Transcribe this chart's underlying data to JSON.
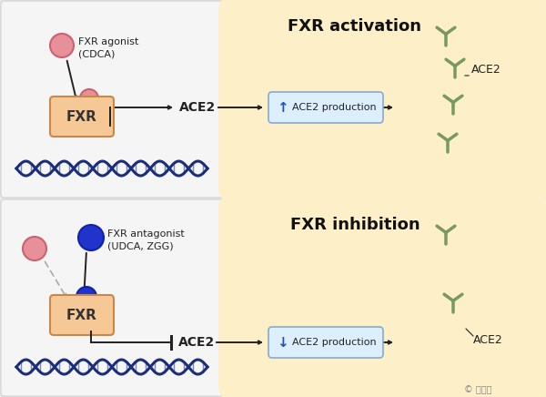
{
  "bg_color": "#e8e8e8",
  "panel_bg": "#f5f5f5",
  "cell_color_light": "#fdf0c8",
  "cell_color_dark": "#f5d878",
  "dna_color": "#1a2e7a",
  "fxr_box_color": "#f5c896",
  "fxr_box_edge": "#c8884a",
  "pink_ball_color": "#e8909a",
  "pink_ball_edge": "#cc6070",
  "blue_ball_color": "#2233cc",
  "blue_ball_edge": "#1122aa",
  "arrow_color": "#222222",
  "gray_arrow_color": "#aaaaaa",
  "box_fill": "#ddeeff",
  "box_edge": "#88aacc",
  "ace2_receptor_color": "#7a9960",
  "title_top": "FXR activation",
  "title_bottom": "FXR inhibition",
  "label_agonist_line1": "FXR agonist",
  "label_agonist_line2": "(CDCA)",
  "label_antagonist_line1": "FXR antagonist",
  "label_antagonist_line2": "(UDCA, ZGG)",
  "box_text_top": "ACE2 production",
  "box_text_bottom": "ACE2 production",
  "ace2_label": "ACE2",
  "fxr_label": "FXR",
  "watermark_symbol": "©",
  "watermark_text": " 量子位"
}
